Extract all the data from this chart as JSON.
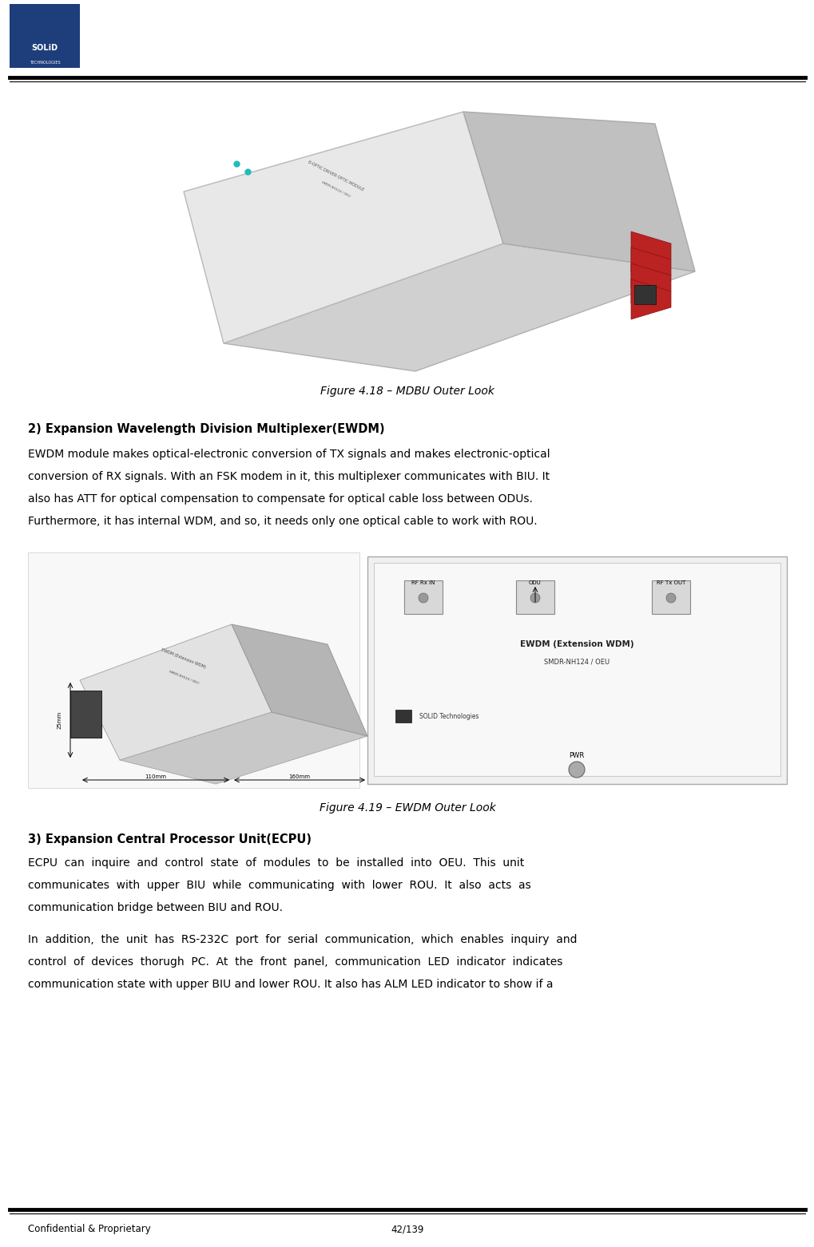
{
  "page_width": 10.2,
  "page_height": 15.62,
  "dpi": 100,
  "background_color": "#ffffff",
  "logo_box_color": "#1e3d7b",
  "footer_left": "Confidential & Proprietary",
  "footer_right": "42/139",
  "figure1_caption": "Figure 4.18 – MDBU Outer Look",
  "figure2_caption": "Figure 4.19 – EWDM Outer Look",
  "section2_heading": "2) Expansion Wavelength Division Multiplexer(EWDM)",
  "section2_body_lines": [
    "EWDM module makes optical-electronic conversion of TX signals and makes electronic-optical",
    "conversion of RX signals. With an FSK modem in it, this multiplexer communicates with BIU. It",
    "also has ATT for optical compensation to compensate for optical cable loss between ODUs.",
    "Furthermore, it has internal WDM, and so, it needs only one optical cable to work with ROU."
  ],
  "section3_heading": "3) Expansion Central Processor Unit(ECPU)",
  "section3_body1_lines": [
    "ECPU  can  inquire  and  control  state  of  modules  to  be  installed  into  OEU.  This  unit",
    "communicates  with  upper  BIU  while  communicating  with  lower  ROU.  It  also  acts  as",
    "communication bridge between BIU and ROU."
  ],
  "section3_body2_lines": [
    "In  addition,  the  unit  has  RS-232C  port  for  serial  communication,  which  enables  inquiry  and",
    "control  of  devices  thorugh  PC.  At  the  front  panel,  communication  LED  indicator  indicates",
    "communication state with upper BIU and lower ROU. It also has ALM LED indicator to show if a"
  ],
  "text_color": "#000000",
  "heading_fontsize": 10.5,
  "body_fontsize": 10.0,
  "caption_fontsize": 10.0,
  "footer_fontsize": 8.5,
  "logo_fontsize_main": 7,
  "logo_fontsize_sub": 3.5
}
